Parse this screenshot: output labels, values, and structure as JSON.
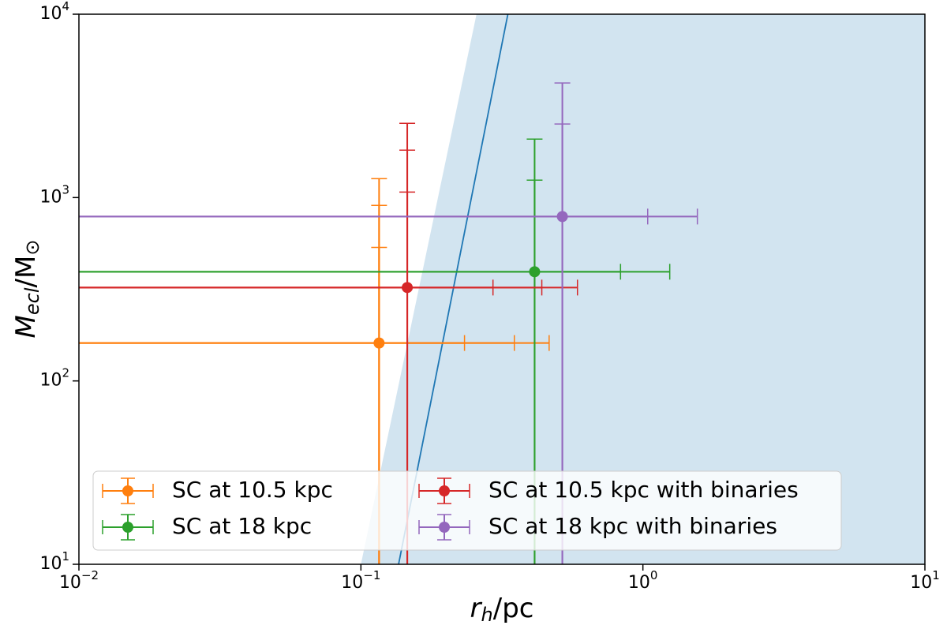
{
  "chart_data": {
    "type": "errorbar",
    "xlabel": [
      "r",
      "h",
      "/pc"
    ],
    "ylabel": [
      "M",
      "ecl",
      "/M",
      "⊙"
    ],
    "xscale": "log",
    "yscale": "log",
    "xlim": [
      0.01,
      10
    ],
    "ylim": [
      10,
      10000
    ],
    "xticks": [
      {
        "value": 0.01,
        "label": [
          "10",
          "−2"
        ]
      },
      {
        "value": 0.1,
        "label": [
          "10",
          "−1"
        ]
      },
      {
        "value": 1,
        "label": [
          "10",
          "0"
        ]
      },
      {
        "value": 10,
        "label": [
          "10",
          "1"
        ]
      }
    ],
    "yticks": [
      {
        "value": 10,
        "label": [
          "10",
          "1"
        ]
      },
      {
        "value": 100,
        "label": [
          "10",
          "2"
        ]
      },
      {
        "value": 1000,
        "label": [
          "10",
          "3"
        ]
      },
      {
        "value": 10000,
        "label": [
          "10",
          "4"
        ]
      }
    ],
    "shade": {
      "x": [
        0.1,
        0.257
      ],
      "y": [
        10,
        10000
      ],
      "color": "#1f77b4"
    },
    "line": {
      "x": [
        0.136,
        0.332
      ],
      "y": [
        10,
        10000
      ],
      "color": "#1f77b4"
    },
    "legend": "lower left",
    "series": [
      {
        "name": "SC at 10.5 kpc",
        "color": "#ff7f0e",
        "x": 0.116,
        "y": 161,
        "xerr": [
          0.117,
          0.234,
          0.349
        ],
        "yerr": [
          374,
          745,
          1107
        ]
      },
      {
        "name": "SC at 18 kpc",
        "color": "#2ca02c",
        "x": 0.413,
        "y": 394,
        "xerr": [
          0.42,
          0.832
        ],
        "yerr": [
          851,
          1691
        ]
      },
      {
        "name": "SC at 10.5 kpc with binaries",
        "color": "#d62728",
        "x": 0.146,
        "y": 323,
        "xerr": [
          0.148,
          0.292,
          0.44
        ],
        "yerr": [
          749,
          1491,
          2218
        ]
      },
      {
        "name": "SC at 18 kpc with binaries",
        "color": "#9467bd",
        "x": 0.518,
        "y": 788,
        "xerr": [
          0.522,
          1.042
        ],
        "yerr": [
          1730,
          3429
        ]
      }
    ]
  }
}
